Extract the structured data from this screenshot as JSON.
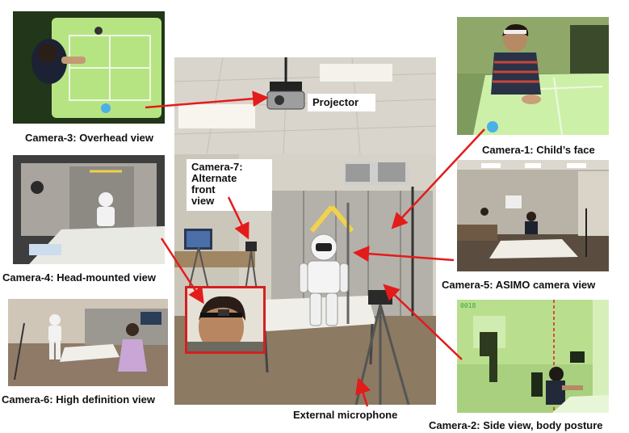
{
  "labels": {
    "projector": "Projector",
    "camera7": "Camera-7: Alternate front view",
    "external_microphone": "External microphone",
    "camera1": "Camera-1: Child’s face",
    "camera2": "Camera-2: Side view, body posture",
    "camera3": "Camera-3: Overhead view",
    "camera4": "Camera-4: Head-mounted view",
    "camera5": "Camera-5: ASIMO camera view",
    "camera6": "Camera-6: High definition view"
  },
  "camera7_lines": [
    "Camera-7:",
    "Alternate",
    "front",
    "view"
  ],
  "overlay_text": {
    "camera2_corner": "0018"
  },
  "colors": {
    "arrow": "#e31b1b",
    "inset_border": "#d42020",
    "green_tint": "#b5e08a"
  }
}
